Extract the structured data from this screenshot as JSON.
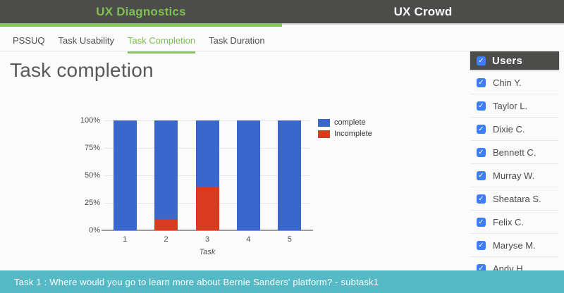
{
  "topbar": {
    "left_title": "UX Diagnostics",
    "right_title": "UX Crowd"
  },
  "tabs": [
    {
      "label": "PSSUQ",
      "active": false
    },
    {
      "label": "Task Usability",
      "active": false
    },
    {
      "label": "Task Completion",
      "active": true
    },
    {
      "label": "Task Duration",
      "active": false
    }
  ],
  "page": {
    "heading": "Task completion"
  },
  "chart_data": {
    "type": "bar",
    "stacked": true,
    "title": "",
    "xlabel": "Task",
    "ylabel": "",
    "categories": [
      "1",
      "2",
      "3",
      "4",
      "5"
    ],
    "series": [
      {
        "name": "complete",
        "color": "#3a67cb",
        "values": [
          100,
          90,
          60,
          100,
          100
        ]
      },
      {
        "name": "Incomplete",
        "color": "#da3b1f",
        "values": [
          0,
          10,
          40,
          0,
          0
        ]
      }
    ],
    "y_ticks": [
      "0%",
      "25%",
      "50%",
      "75%",
      "100%"
    ],
    "ylim": [
      0,
      100
    ],
    "grid": true,
    "legend_position": "right-top"
  },
  "sidebar": {
    "header": {
      "label": "Users",
      "checked": true,
      "check_glyph": "✓"
    },
    "users": [
      {
        "name": "Chin Y.",
        "checked": true
      },
      {
        "name": "Taylor L.",
        "checked": true
      },
      {
        "name": "Dixie C.",
        "checked": true
      },
      {
        "name": "Bennett C.",
        "checked": true
      },
      {
        "name": "Murray W.",
        "checked": true
      },
      {
        "name": "Sheatara S.",
        "checked": true
      },
      {
        "name": "Felix C.",
        "checked": true
      },
      {
        "name": "Maryse M.",
        "checked": true
      },
      {
        "name": "Andy H.",
        "checked": true
      }
    ]
  },
  "bottombar": {
    "text": "Task 1 : Where would you go to learn more about Bernie Sanders' platform? - subtask1"
  },
  "colors": {
    "accent_green": "#7dc04e",
    "topbar_bg": "#4c4c4b",
    "teal": "#55b9c6",
    "checkbox_blue": "#3d7ef2",
    "bar_blue": "#3a67cb",
    "bar_red": "#da3b1f"
  }
}
